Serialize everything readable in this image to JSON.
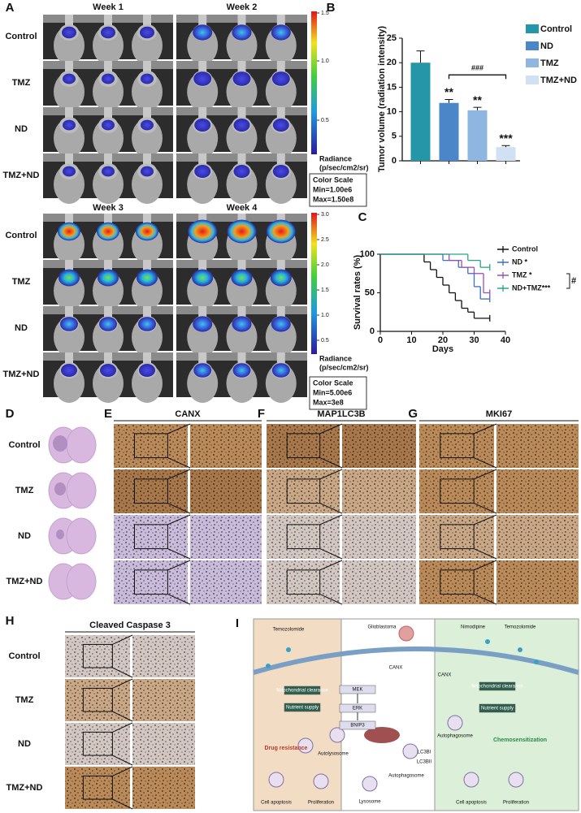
{
  "figure": {
    "A": {
      "label": "A",
      "weeks": [
        "Week 1",
        "Week 2",
        "Week 3",
        "Week 4"
      ],
      "groups": [
        "Control",
        "TMZ",
        "ND",
        "TMZ+ND"
      ],
      "scales": [
        {
          "ticks": [
            "1.5",
            "1.0",
            "0.5"
          ],
          "radiance": "Radiance",
          "unit": "(p/sec/cm2/sr)",
          "title": "Color Scale",
          "min": "Min=1.00e6",
          "max": "Max=1.50e8"
        },
        {
          "ticks": [
            "3.0",
            "2.5",
            "2.0",
            "1.5",
            "1.0",
            "0.5"
          ],
          "radiance": "Radiance",
          "unit": "(p/sec/cm2/sr)",
          "title": "Color Scale",
          "min": "Min=5.00e6",
          "max": "Max=3e8"
        }
      ]
    },
    "D": {
      "label": "D",
      "groups": [
        "Control",
        "TMZ",
        "ND",
        "TMZ+ND"
      ]
    },
    "E": {
      "label": "E",
      "title": "CANX"
    },
    "F": {
      "label": "F",
      "title": "MAP1LC3B"
    },
    "G": {
      "label": "G",
      "title": "MKI67"
    },
    "H": {
      "label": "H",
      "title": "Cleaved Caspase 3",
      "groups": [
        "Control",
        "TMZ",
        "ND",
        "TMZ+ND"
      ]
    },
    "I": {
      "label": "I",
      "labels": [
        "Temozolomide",
        "Glioblastoma",
        "Nimodipine",
        "Temozolomide",
        "CANX",
        "MEK",
        "ERK",
        "BNIP3",
        "LC3BI",
        "LC3BII",
        "Mitochondrial clearance",
        "Nutrient supply",
        "Autolysosome",
        "Drug resistance",
        "Cell apoptosis",
        "Proliferation",
        "Autophagosome",
        "Lysosome",
        "CANX",
        "Mitochondrial clearance",
        "Nutrient supply",
        "Autophagosome",
        "Chemosensitization",
        "Cell apoptosis",
        "Proliferation"
      ]
    }
  },
  "chart_data": [
    {
      "type": "bar",
      "label": "B",
      "ylabel": "Tumor volume (radiation intensity)",
      "categories": [
        "Control",
        "ND",
        "TMZ",
        "TMZ+ND"
      ],
      "values": [
        20,
        11.8,
        10.3,
        2.8
      ],
      "errors": [
        2.4,
        0.7,
        0.6,
        0.3
      ],
      "colors": [
        "#2596a8",
        "#4a86c8",
        "#8fb6e0",
        "#cfe1f3"
      ],
      "significance": [
        null,
        "**",
        "**",
        "***"
      ],
      "bracket": "###",
      "ylim": [
        0,
        25
      ],
      "yticks": [
        0,
        5,
        10,
        15,
        20,
        25
      ]
    },
    {
      "type": "step",
      "label": "C",
      "xlabel": "Days",
      "ylabel": "Survival rates (%)",
      "annotation": "#",
      "xlim": [
        0,
        40
      ],
      "xticks": [
        0,
        10,
        20,
        30,
        40
      ],
      "ylim": [
        0,
        100
      ],
      "yticks": [
        0,
        50,
        100
      ],
      "series": [
        {
          "name": "Control",
          "color": "#111111",
          "x": [
            0,
            14,
            16,
            18,
            20,
            22,
            24,
            26,
            28,
            30,
            35
          ],
          "values": [
            100,
            90,
            80,
            70,
            60,
            50,
            40,
            30,
            25,
            17,
            17
          ]
        },
        {
          "name": "ND *",
          "color": "#3a6fc4",
          "x": [
            0,
            20,
            25,
            28,
            30,
            32,
            35
          ],
          "values": [
            100,
            92,
            83,
            75,
            58,
            42,
            42
          ]
        },
        {
          "name": "TMZ  *",
          "color": "#9b4fb0",
          "x": [
            0,
            22,
            26,
            30,
            33,
            35
          ],
          "values": [
            100,
            92,
            83,
            75,
            50,
            50
          ]
        },
        {
          "name": "ND+TMZ***",
          "color": "#2aa58a",
          "x": [
            0,
            28,
            32,
            35
          ],
          "values": [
            100,
            92,
            83,
            83
          ]
        }
      ]
    }
  ]
}
